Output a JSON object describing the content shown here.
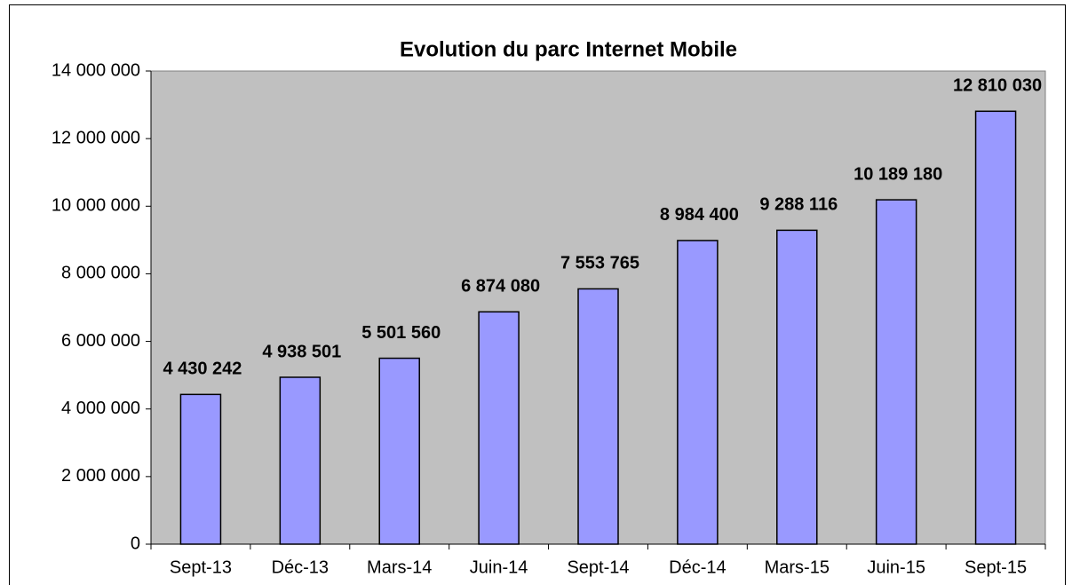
{
  "chart_data": {
    "type": "bar",
    "title": "Evolution du parc Internet Mobile",
    "categories": [
      "Sept-13",
      "Déc-13",
      "Mars-14",
      "Juin-14",
      "Sept-14",
      "Déc-14",
      "Mars-15",
      "Juin-15",
      "Sept-15"
    ],
    "values": [
      4430242,
      4938501,
      5501560,
      6874080,
      7553765,
      8984400,
      9288116,
      10189180,
      12810030
    ],
    "value_labels": [
      "4 430 242",
      "4 938 501",
      "5 501 560",
      "6 874 080",
      "7 553 765",
      "8 984 400",
      "9 288 116",
      "10 189 180",
      "12 810 030"
    ],
    "color": "#9999ff",
    "ylim": [
      0,
      14000000
    ],
    "yticks": [
      0,
      {
        "value": 2000000,
        "label": "2 000 000"
      },
      {
        "value": 4000000,
        "label": "4 000 000"
      },
      {
        "value": 6000000,
        "label": "6 000 000"
      },
      {
        "value": 8000000,
        "label": "8 000 000"
      },
      {
        "value": 10000000,
        "label": "10 000 000"
      },
      {
        "value": 12000000,
        "label": "12 000 000"
      },
      {
        "value": 14000000,
        "label": "14 000 000"
      }
    ],
    "grid": false
  }
}
